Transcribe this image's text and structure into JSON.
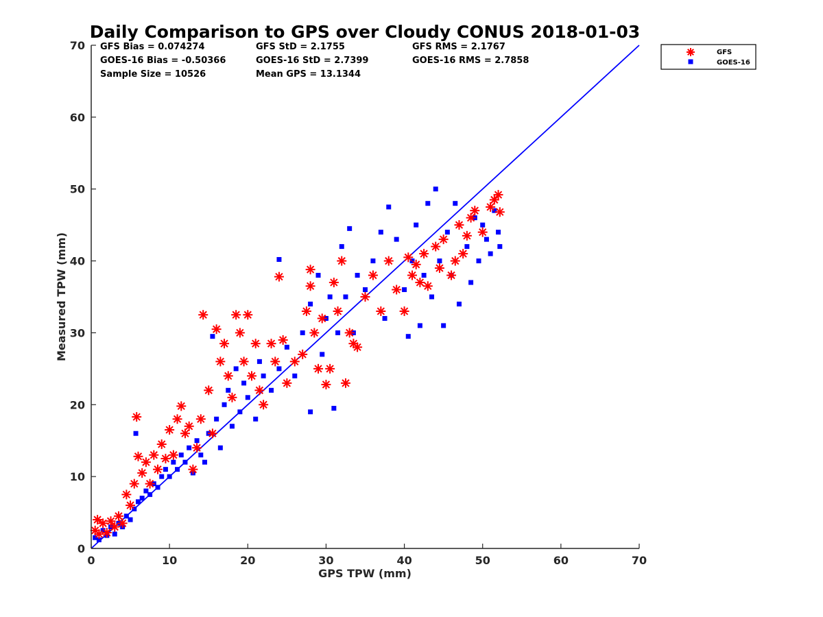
{
  "chart_data": {
    "type": "scatter",
    "title": "Daily Comparison to GPS over Cloudy CONUS 2018-01-03",
    "xlabel": "GPS TPW (mm)",
    "ylabel": "Measured TPW (mm)",
    "xlim": [
      0,
      70
    ],
    "ylim": [
      0,
      70
    ],
    "xticks": [
      "0",
      "10",
      "20",
      "30",
      "40",
      "50",
      "60",
      "70"
    ],
    "yticks": [
      "0",
      "10",
      "20",
      "30",
      "40",
      "50",
      "60",
      "70"
    ],
    "grid": false,
    "legend_position": "outside top-right",
    "stats": [
      [
        "GFS Bias = 0.074274",
        "GFS StD = 2.1755",
        "GFS RMS = 2.1767"
      ],
      [
        "GOES-16 Bias = -0.50366",
        "GOES-16 StD = 2.7399",
        "GOES-16 RMS = 2.7858"
      ],
      [
        "Sample Size = 10526",
        "Mean GPS = 13.1344"
      ]
    ],
    "reference_line": {
      "x": [
        0,
        70
      ],
      "y": [
        0,
        70
      ],
      "color": "#0000ff"
    },
    "series": [
      {
        "name": "GFS",
        "marker": "asterisk",
        "color": "#ff0000",
        "points": [
          [
            0.5,
            2.5
          ],
          [
            0.8,
            4
          ],
          [
            1,
            2
          ],
          [
            1.5,
            3.5
          ],
          [
            2,
            2.2
          ],
          [
            2.5,
            3.8
          ],
          [
            3,
            3
          ],
          [
            3.5,
            4.5
          ],
          [
            4,
            3.5
          ],
          [
            4.5,
            7.5
          ],
          [
            5,
            6
          ],
          [
            5.5,
            9
          ],
          [
            5.8,
            18.3
          ],
          [
            6,
            12.8
          ],
          [
            6.5,
            10.5
          ],
          [
            7,
            12
          ],
          [
            7.5,
            9
          ],
          [
            8,
            13
          ],
          [
            8.5,
            11
          ],
          [
            9,
            14.5
          ],
          [
            9.5,
            12.5
          ],
          [
            10,
            16.5
          ],
          [
            10.5,
            13
          ],
          [
            11,
            18
          ],
          [
            11.5,
            19.8
          ],
          [
            12,
            16
          ],
          [
            12.5,
            17
          ],
          [
            13,
            11
          ],
          [
            13.5,
            14
          ],
          [
            14,
            18
          ],
          [
            14.3,
            32.5
          ],
          [
            15,
            22
          ],
          [
            15.5,
            16
          ],
          [
            16,
            30.5
          ],
          [
            16.5,
            26
          ],
          [
            17,
            28.5
          ],
          [
            17.5,
            24
          ],
          [
            18,
            21
          ],
          [
            18.5,
            32.5
          ],
          [
            19,
            30
          ],
          [
            19.5,
            26
          ],
          [
            20,
            32.5
          ],
          [
            20.5,
            24
          ],
          [
            21,
            28.5
          ],
          [
            21.5,
            22
          ],
          [
            22,
            20
          ],
          [
            23,
            28.5
          ],
          [
            23.5,
            26
          ],
          [
            24,
            37.8
          ],
          [
            24.5,
            29
          ],
          [
            25,
            23
          ],
          [
            26,
            26
          ],
          [
            27,
            27
          ],
          [
            27.5,
            33
          ],
          [
            28,
            38.8
          ],
          [
            28,
            36.5
          ],
          [
            28.5,
            30
          ],
          [
            29,
            25
          ],
          [
            29.5,
            32
          ],
          [
            30,
            22.8
          ],
          [
            30.5,
            25
          ],
          [
            31,
            37
          ],
          [
            31.5,
            33
          ],
          [
            32,
            40
          ],
          [
            32.5,
            23
          ],
          [
            33,
            30
          ],
          [
            33.5,
            28.5
          ],
          [
            34,
            28
          ],
          [
            35,
            35
          ],
          [
            36,
            38
          ],
          [
            37,
            33
          ],
          [
            38,
            40
          ],
          [
            39,
            36
          ],
          [
            40,
            33
          ],
          [
            40.5,
            40.5
          ],
          [
            41,
            38
          ],
          [
            41.5,
            39.5
          ],
          [
            42,
            37
          ],
          [
            42.5,
            41
          ],
          [
            43,
            36.5
          ],
          [
            44,
            42
          ],
          [
            45,
            43
          ],
          [
            46,
            38
          ],
          [
            46.5,
            40
          ],
          [
            47,
            45
          ],
          [
            48,
            43.5
          ],
          [
            48.5,
            46
          ],
          [
            49,
            47
          ],
          [
            50,
            44
          ],
          [
            51,
            47.5
          ],
          [
            51.5,
            48.5
          ],
          [
            52,
            49.2
          ],
          [
            52.2,
            46.8
          ],
          [
            47.5,
            41
          ],
          [
            44.5,
            39
          ]
        ]
      },
      {
        "name": "GOES-16",
        "marker": "square",
        "color": "#0000ff",
        "points": [
          [
            0.5,
            1.5
          ],
          [
            1,
            1.2
          ],
          [
            1.5,
            2.5
          ],
          [
            2,
            1.8
          ],
          [
            2.5,
            3
          ],
          [
            3,
            2
          ],
          [
            3.5,
            3.5
          ],
          [
            4,
            3
          ],
          [
            4.5,
            4.5
          ],
          [
            5,
            4
          ],
          [
            5.5,
            5.5
          ],
          [
            5.7,
            16
          ],
          [
            6,
            6.5
          ],
          [
            6.5,
            7
          ],
          [
            7,
            8
          ],
          [
            7.5,
            7.5
          ],
          [
            8,
            9
          ],
          [
            8.5,
            8.5
          ],
          [
            9,
            10
          ],
          [
            9.5,
            11
          ],
          [
            10,
            10
          ],
          [
            10.5,
            12
          ],
          [
            11,
            11
          ],
          [
            11.5,
            13
          ],
          [
            12,
            12
          ],
          [
            12.5,
            14
          ],
          [
            13,
            10.5
          ],
          [
            13.5,
            15
          ],
          [
            14,
            13
          ],
          [
            14.5,
            12
          ],
          [
            15,
            16
          ],
          [
            15.5,
            29.5
          ],
          [
            16,
            18
          ],
          [
            16.5,
            14
          ],
          [
            17,
            20
          ],
          [
            17.5,
            22
          ],
          [
            18,
            17
          ],
          [
            18.5,
            25
          ],
          [
            19,
            19
          ],
          [
            19.5,
            23
          ],
          [
            20,
            21
          ],
          [
            21,
            18
          ],
          [
            21.5,
            26
          ],
          [
            22,
            24
          ],
          [
            23,
            22
          ],
          [
            24,
            40.2
          ],
          [
            24,
            25
          ],
          [
            25,
            28
          ],
          [
            26,
            24
          ],
          [
            27,
            30
          ],
          [
            28,
            34
          ],
          [
            28,
            19
          ],
          [
            29,
            38
          ],
          [
            29.5,
            27
          ],
          [
            30,
            32
          ],
          [
            30.5,
            35
          ],
          [
            31,
            19.5
          ],
          [
            31.5,
            30
          ],
          [
            32,
            42
          ],
          [
            32.5,
            35
          ],
          [
            33,
            44.5
          ],
          [
            33.5,
            30
          ],
          [
            34,
            38
          ],
          [
            35,
            36
          ],
          [
            36,
            40
          ],
          [
            37,
            44
          ],
          [
            37.5,
            32
          ],
          [
            38,
            47.5
          ],
          [
            39,
            43
          ],
          [
            40,
            36
          ],
          [
            40.5,
            29.5
          ],
          [
            41,
            40
          ],
          [
            41.5,
            45
          ],
          [
            42,
            31
          ],
          [
            42.5,
            38
          ],
          [
            43,
            48
          ],
          [
            43.5,
            35
          ],
          [
            44,
            50
          ],
          [
            44.5,
            40
          ],
          [
            45,
            31
          ],
          [
            45.5,
            44
          ],
          [
            46,
            38
          ],
          [
            46.5,
            48
          ],
          [
            47,
            34
          ],
          [
            48,
            42
          ],
          [
            48.5,
            37
          ],
          [
            49,
            46
          ],
          [
            49.5,
            40
          ],
          [
            50,
            45
          ],
          [
            50.5,
            43
          ],
          [
            51,
            41
          ],
          [
            51.5,
            47
          ],
          [
            52,
            44
          ],
          [
            52.2,
            42
          ]
        ]
      }
    ]
  }
}
